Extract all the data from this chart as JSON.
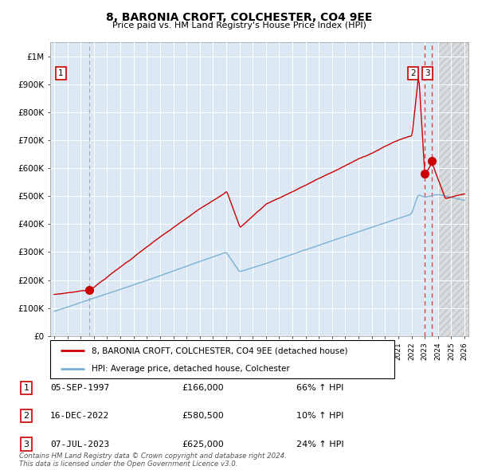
{
  "title": "8, BARONIA CROFT, COLCHESTER, CO4 9EE",
  "subtitle": "Price paid vs. HM Land Registry's House Price Index (HPI)",
  "legend_label_red": "8, BARONIA CROFT, COLCHESTER, CO4 9EE (detached house)",
  "legend_label_blue": "HPI: Average price, detached house, Colchester",
  "transactions": [
    {
      "num": 1,
      "date": "05-SEP-1997",
      "price": 166000,
      "pct": "66%",
      "dir": "↑"
    },
    {
      "num": 2,
      "date": "16-DEC-2022",
      "price": 580500,
      "pct": "10%",
      "dir": "↑"
    },
    {
      "num": 3,
      "date": "07-JUL-2023",
      "price": 625000,
      "pct": "24%",
      "dir": "↑"
    }
  ],
  "footnote": "Contains HM Land Registry data © Crown copyright and database right 2024.\nThis data is licensed under the Open Government Licence v3.0.",
  "chart_bg": "#dce9f5",
  "red_line_color": "#cc0000",
  "blue_line_color": "#7ab0d4",
  "grid_color": "#ffffff",
  "dashed_vline_color": "#dd4444",
  "dotted_vline1_color": "#aaaaaa",
  "ylim": [
    0,
    1050000
  ],
  "yticks": [
    0,
    100000,
    200000,
    300000,
    400000,
    500000,
    600000,
    700000,
    800000,
    900000,
    1000000
  ],
  "year_start": 1995,
  "year_end": 2026,
  "t1_year": 1997.67,
  "t2_year": 2022.96,
  "t3_year": 2023.52,
  "p1": 166000,
  "p2": 580500,
  "p3": 625000
}
